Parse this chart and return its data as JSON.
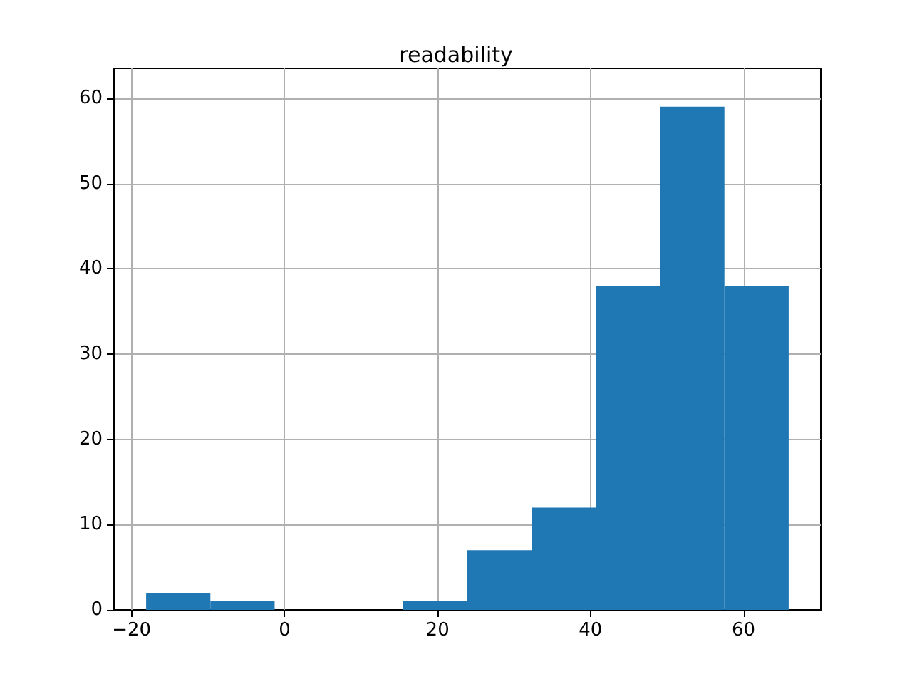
{
  "chart_data": {
    "type": "histogram",
    "title": "readability",
    "color": "#1f77b4",
    "bins": [
      -18.1,
      -9.7,
      -1.3,
      7.1,
      15.5,
      23.9,
      32.3,
      40.7,
      49.1,
      57.5,
      65.9
    ],
    "values": [
      2,
      1,
      0,
      0,
      1,
      7,
      12,
      38,
      59,
      38
    ],
    "xlim": [
      -22.3,
      70.1
    ],
    "xticks": [
      -20,
      0,
      20,
      40,
      60
    ],
    "ylim": [
      0,
      63.5
    ],
    "yticks": [
      0,
      10,
      20,
      30,
      40,
      50,
      60
    ],
    "grid": true
  }
}
